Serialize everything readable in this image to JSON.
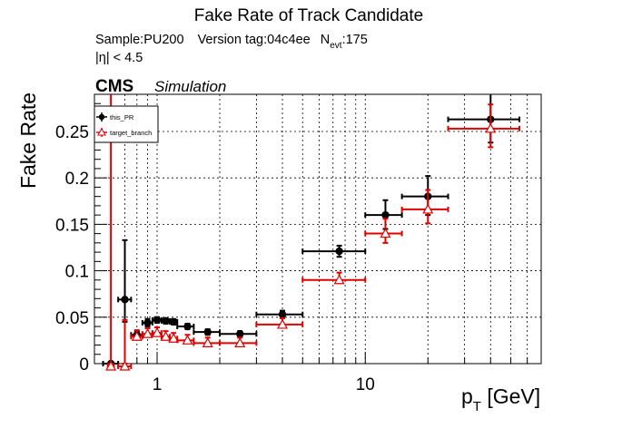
{
  "chart_data": {
    "type": "scatter",
    "title": "Fake Rate of Track Candidate",
    "subtitle": {
      "sample": "Sample:PU200",
      "version": "Version tag:04c4ee",
      "nevt_prefix": "N",
      "nevt_sub": "evt",
      "nevt_value": ":175",
      "eta_cut": "|η| < 4.5"
    },
    "cms_label": "CMS",
    "simulation_label": "Simulation",
    "xlabel_main": "p",
    "xlabel_sub": "T",
    "xlabel_unit": " [GeV]",
    "ylabel": "Fake Rate",
    "x_scale": "log",
    "xlim": [
      0.5,
      70
    ],
    "ylim": [
      0,
      0.29
    ],
    "grid": true,
    "legend_position": "top-left",
    "x_ticks": [
      {
        "v": 1,
        "label": "1"
      },
      {
        "v": 10,
        "label": "10"
      }
    ],
    "y_ticks": [
      {
        "v": 0,
        "label": "0"
      },
      {
        "v": 0.05,
        "label": "0.05"
      },
      {
        "v": 0.1,
        "label": "0.1"
      },
      {
        "v": 0.15,
        "label": "0.15"
      },
      {
        "v": 0.2,
        "label": "0.2"
      },
      {
        "v": 0.25,
        "label": "0.25"
      }
    ],
    "series": [
      {
        "name": "this_PR",
        "color": "#000000",
        "marker": "filled-circle",
        "points": [
          {
            "x": 0.6,
            "xlo": 0.55,
            "xhi": 0.65,
            "y": 0.0,
            "ylo": 0.0,
            "yhi": 0.0
          },
          {
            "x": 0.7,
            "xlo": 0.65,
            "xhi": 0.75,
            "y": 0.069,
            "ylo": 0.045,
            "yhi": 0.133
          },
          {
            "x": 0.8,
            "xlo": 0.75,
            "xhi": 0.85,
            "y": 0.031,
            "ylo": 0.027,
            "yhi": 0.035
          },
          {
            "x": 0.9,
            "xlo": 0.85,
            "xhi": 0.95,
            "y": 0.044,
            "ylo": 0.04,
            "yhi": 0.048
          },
          {
            "x": 1.0,
            "xlo": 0.95,
            "xhi": 1.05,
            "y": 0.047,
            "ylo": 0.044,
            "yhi": 0.05
          },
          {
            "x": 1.1,
            "xlo": 1.05,
            "xhi": 1.15,
            "y": 0.046,
            "ylo": 0.043,
            "yhi": 0.049
          },
          {
            "x": 1.2,
            "xlo": 1.15,
            "xhi": 1.25,
            "y": 0.045,
            "ylo": 0.042,
            "yhi": 0.048
          },
          {
            "x": 1.4,
            "xlo": 1.25,
            "xhi": 1.5,
            "y": 0.04,
            "ylo": 0.037,
            "yhi": 0.043
          },
          {
            "x": 1.75,
            "xlo": 1.5,
            "xhi": 2.0,
            "y": 0.034,
            "ylo": 0.031,
            "yhi": 0.037
          },
          {
            "x": 2.5,
            "xlo": 2.0,
            "xhi": 3.0,
            "y": 0.032,
            "ylo": 0.029,
            "yhi": 0.035
          },
          {
            "x": 4.0,
            "xlo": 3.0,
            "xhi": 5.0,
            "y": 0.053,
            "ylo": 0.049,
            "yhi": 0.057
          },
          {
            "x": 7.5,
            "xlo": 5.0,
            "xhi": 10.0,
            "y": 0.121,
            "ylo": 0.115,
            "yhi": 0.127
          },
          {
            "x": 12.5,
            "xlo": 10.0,
            "xhi": 15.0,
            "y": 0.16,
            "ylo": 0.145,
            "yhi": 0.176
          },
          {
            "x": 20.0,
            "xlo": 15.0,
            "xhi": 25.0,
            "y": 0.18,
            "ylo": 0.16,
            "yhi": 0.202
          },
          {
            "x": 40.0,
            "xlo": 25.0,
            "xhi": 55.0,
            "y": 0.263,
            "ylo": 0.238,
            "yhi": 0.29
          }
        ]
      },
      {
        "name": "target_branch",
        "color": "#e00000",
        "marker": "open-triangle",
        "points": [
          {
            "x": 0.6,
            "xlo": 0.58,
            "xhi": 0.62,
            "y": 0.0,
            "ylo": 0.0,
            "yhi": 0.29
          },
          {
            "x": 0.7,
            "xlo": 0.65,
            "xhi": 0.75,
            "y": 0.0,
            "ylo": 0.0,
            "yhi": 0.047
          },
          {
            "x": 0.8,
            "xlo": 0.75,
            "xhi": 0.85,
            "y": 0.032,
            "ylo": 0.028,
            "yhi": 0.036
          },
          {
            "x": 0.9,
            "xlo": 0.85,
            "xhi": 0.95,
            "y": 0.035,
            "ylo": 0.032,
            "yhi": 0.038
          },
          {
            "x": 1.0,
            "xlo": 0.95,
            "xhi": 1.05,
            "y": 0.036,
            "ylo": 0.033,
            "yhi": 0.039
          },
          {
            "x": 1.1,
            "xlo": 1.05,
            "xhi": 1.15,
            "y": 0.032,
            "ylo": 0.029,
            "yhi": 0.035
          },
          {
            "x": 1.2,
            "xlo": 1.15,
            "xhi": 1.25,
            "y": 0.03,
            "ylo": 0.027,
            "yhi": 0.033
          },
          {
            "x": 1.4,
            "xlo": 1.25,
            "xhi": 1.5,
            "y": 0.028,
            "ylo": 0.025,
            "yhi": 0.031
          },
          {
            "x": 1.75,
            "xlo": 1.5,
            "xhi": 2.0,
            "y": 0.025,
            "ylo": 0.022,
            "yhi": 0.028
          },
          {
            "x": 2.5,
            "xlo": 2.0,
            "xhi": 3.0,
            "y": 0.025,
            "ylo": 0.022,
            "yhi": 0.028
          },
          {
            "x": 4.0,
            "xlo": 3.0,
            "xhi": 5.0,
            "y": 0.045,
            "ylo": 0.041,
            "yhi": 0.049
          },
          {
            "x": 7.5,
            "xlo": 5.0,
            "xhi": 10.0,
            "y": 0.093,
            "ylo": 0.088,
            "yhi": 0.098
          },
          {
            "x": 12.5,
            "xlo": 10.0,
            "xhi": 15.0,
            "y": 0.143,
            "ylo": 0.13,
            "yhi": 0.156
          },
          {
            "x": 20.0,
            "xlo": 15.0,
            "xhi": 25.0,
            "y": 0.169,
            "ylo": 0.151,
            "yhi": 0.187
          },
          {
            "x": 40.0,
            "xlo": 25.0,
            "xhi": 55.0,
            "y": 0.256,
            "ylo": 0.233,
            "yhi": 0.279
          }
        ]
      }
    ]
  }
}
